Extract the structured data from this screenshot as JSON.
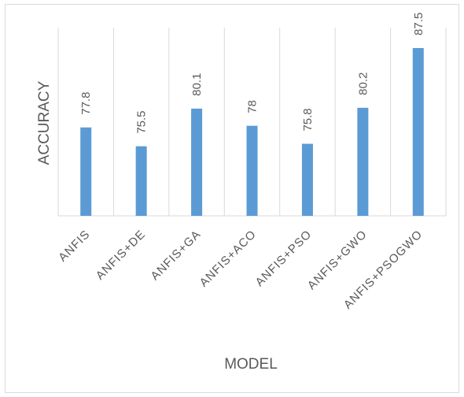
{
  "chart_data": {
    "type": "bar",
    "categories": [
      "ANFIS",
      "ANFIS+DE",
      "ANFIS+GA",
      "ANFIS+ACO",
      "ANFIS+PSO",
      "ANFIS+GWO",
      "ANFIS+PSOGWO"
    ],
    "values": [
      77.8,
      75.5,
      80.1,
      78,
      75.8,
      80.2,
      87.5
    ],
    "value_labels": [
      "77.8",
      "75.5",
      "80.1",
      "78",
      "75.8",
      "80.2",
      "87.5"
    ],
    "title": "",
    "xlabel": "MODEL",
    "ylabel": "ACCURACY",
    "ylim": [
      67,
      90
    ],
    "grid": "vertical",
    "legend": "none",
    "bar_color": "#5b9bd5",
    "grid_color": "#d9d9d9",
    "text_color": "#595959"
  }
}
